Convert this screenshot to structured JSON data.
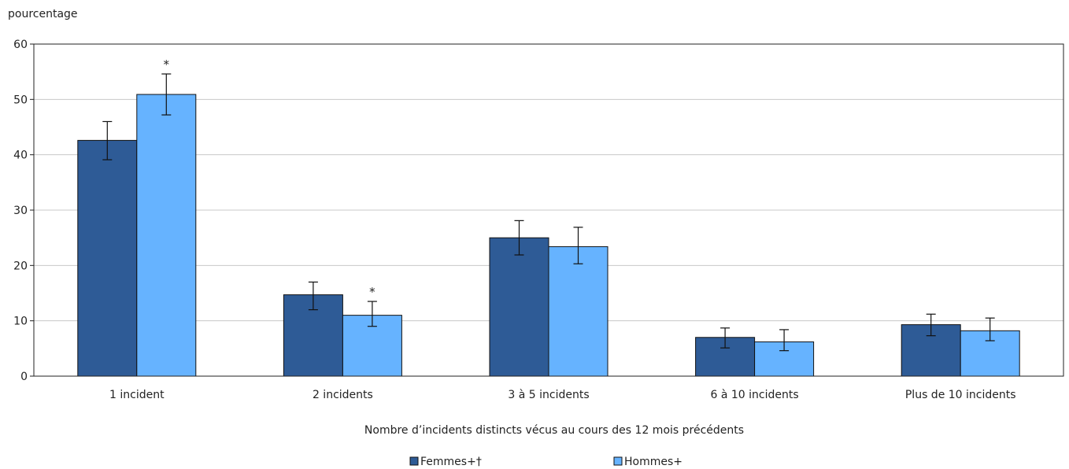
{
  "chart_data": {
    "type": "bar",
    "ylabel": "pourcentage",
    "xlabel": "Nombre d’incidents distincts vécus au cours des 12 mois précédents",
    "ylim": [
      0,
      60
    ],
    "yticks": [
      0,
      10,
      20,
      30,
      40,
      50,
      60
    ],
    "grid": true,
    "legend_position": "bottom",
    "categories": [
      "1 incident",
      "2 incidents",
      "3 à 5 incidents",
      "6 à 10 incidents",
      "Plus de 10 incidents"
    ],
    "series": [
      {
        "name": "Femmes+†",
        "color": "#2e5b96",
        "values": [
          42.6,
          14.7,
          25.0,
          7.0,
          9.3
        ],
        "error_low": [
          39.1,
          12.0,
          21.9,
          5.1,
          7.3
        ],
        "error_high": [
          46.0,
          17.0,
          28.1,
          8.7,
          11.2
        ],
        "markers": [
          "",
          "",
          "",
          "",
          ""
        ]
      },
      {
        "name": "Hommes+",
        "color": "#66b3ff",
        "values": [
          50.9,
          11.0,
          23.4,
          6.2,
          8.2
        ],
        "error_low": [
          47.2,
          9.0,
          20.3,
          4.6,
          6.4
        ],
        "error_high": [
          54.6,
          13.5,
          26.9,
          8.4,
          10.5
        ],
        "markers": [
          "*",
          "*",
          "",
          "",
          ""
        ]
      }
    ]
  }
}
